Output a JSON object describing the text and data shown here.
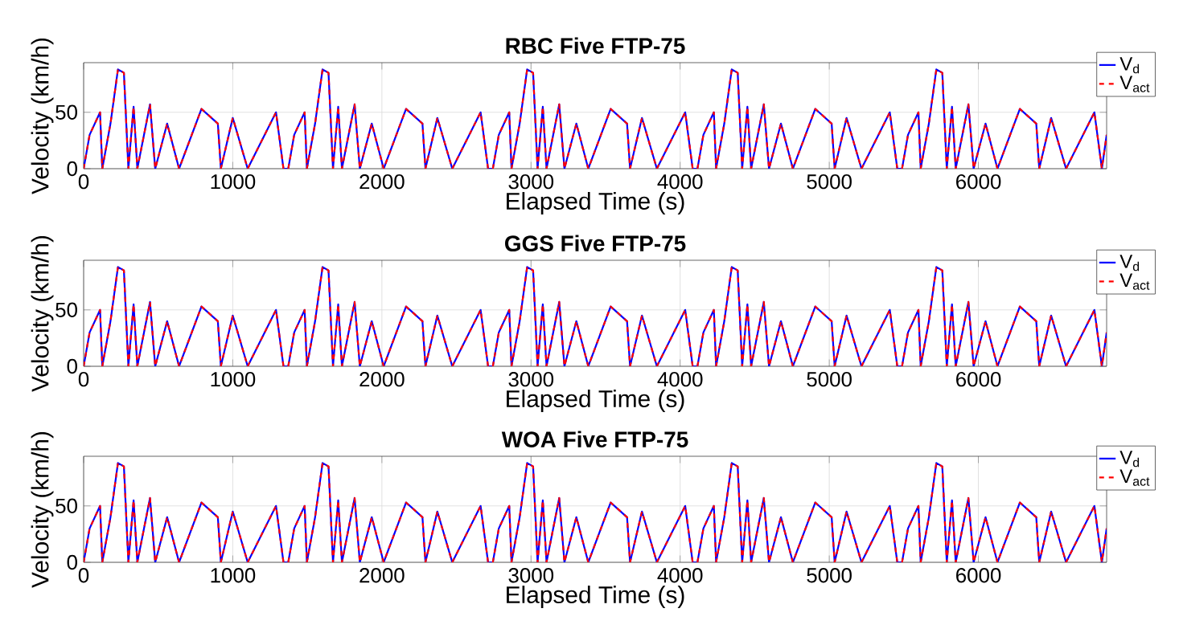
{
  "chart_data": [
    {
      "type": "line",
      "title": "RBC Five FTP-75",
      "xlabel": "Elapsed Time (s)",
      "ylabel": "Velocity (km/h)",
      "x": [
        0,
        40,
        110,
        125,
        180,
        230,
        270,
        300,
        335,
        360,
        445,
        480,
        560,
        640,
        790,
        900,
        920,
        1000,
        1100,
        1290,
        1340,
        1372,
        1412,
        1482,
        1497,
        1552,
        1602,
        1642,
        1672,
        1707,
        1732,
        1817,
        1852,
        1932,
        2012,
        2162,
        2272,
        2292,
        2372,
        2472,
        2662,
        2712,
        2744,
        2784,
        2854,
        2869,
        2924,
        2974,
        3014,
        3044,
        3079,
        3104,
        3189,
        3224,
        3304,
        3384,
        3534,
        3644,
        3664,
        3744,
        3844,
        4034,
        4084,
        4116,
        4156,
        4226,
        4241,
        4296,
        4346,
        4386,
        4416,
        4451,
        4476,
        4561,
        4596,
        4676,
        4756,
        4906,
        5016,
        5036,
        5116,
        5216,
        5406,
        5456,
        5488,
        5528,
        5598,
        5613,
        5668,
        5718,
        5758,
        5788,
        5823,
        5848,
        5933,
        5968,
        6048,
        6128,
        6278,
        6388,
        6408,
        6488,
        6588,
        6778,
        6828,
        6860
      ],
      "series": [
        {
          "name": "V$_{d}$",
          "color": "#0000ff",
          "line_style": "solid",
          "values": [
            0,
            30,
            50,
            0,
            40,
            88,
            85,
            0,
            55,
            0,
            57,
            0,
            40,
            0,
            53,
            40,
            0,
            45,
            0,
            50,
            0,
            0,
            30,
            50,
            0,
            40,
            88,
            85,
            0,
            55,
            0,
            57,
            0,
            40,
            0,
            53,
            40,
            0,
            45,
            0,
            50,
            0,
            0,
            30,
            50,
            0,
            40,
            88,
            85,
            0,
            55,
            0,
            57,
            0,
            40,
            0,
            53,
            40,
            0,
            45,
            0,
            50,
            0,
            0,
            30,
            50,
            0,
            40,
            88,
            85,
            0,
            55,
            0,
            57,
            0,
            40,
            0,
            53,
            40,
            0,
            45,
            0,
            50,
            0,
            0,
            30,
            50,
            0,
            40,
            88,
            85,
            0,
            55,
            0,
            57,
            0,
            40,
            0,
            53,
            40,
            0,
            45,
            0,
            50,
            0,
            30
          ]
        },
        {
          "name": "V$_{act}$",
          "color": "#ff0000",
          "line_style": "dashed",
          "values": [
            0,
            30,
            50,
            0,
            40,
            88,
            85,
            0,
            55,
            0,
            57,
            0,
            40,
            0,
            53,
            40,
            0,
            45,
            0,
            50,
            0,
            0,
            30,
            50,
            0,
            40,
            88,
            85,
            0,
            55,
            0,
            57,
            0,
            40,
            0,
            53,
            40,
            0,
            45,
            0,
            50,
            0,
            0,
            30,
            50,
            0,
            40,
            88,
            85,
            0,
            55,
            0,
            57,
            0,
            40,
            0,
            53,
            40,
            0,
            45,
            0,
            50,
            0,
            0,
            30,
            50,
            0,
            40,
            88,
            85,
            0,
            55,
            0,
            57,
            0,
            40,
            0,
            53,
            40,
            0,
            45,
            0,
            50,
            0,
            0,
            30,
            50,
            0,
            40,
            88,
            85,
            0,
            55,
            0,
            57,
            0,
            40,
            0,
            53,
            40,
            0,
            45,
            0,
            50,
            0,
            30
          ]
        }
      ],
      "xlim": [
        0,
        6860
      ],
      "ylim": [
        0,
        94
      ],
      "xticks": [
        0,
        1000,
        2000,
        3000,
        4000,
        5000,
        6000
      ],
      "yticks": [
        0,
        50
      ],
      "grid": true,
      "legend": "top right"
    },
    {
      "type": "line",
      "title": "GGS Five FTP-75",
      "xlabel": "Elapsed Time (s)",
      "ylabel": "Velocity (km/h)",
      "x": [
        0,
        40,
        110,
        125,
        180,
        230,
        270,
        300,
        335,
        360,
        445,
        480,
        560,
        640,
        790,
        900,
        920,
        1000,
        1100,
        1290,
        1340,
        1372,
        1412,
        1482,
        1497,
        1552,
        1602,
        1642,
        1672,
        1707,
        1732,
        1817,
        1852,
        1932,
        2012,
        2162,
        2272,
        2292,
        2372,
        2472,
        2662,
        2712,
        2744,
        2784,
        2854,
        2869,
        2924,
        2974,
        3014,
        3044,
        3079,
        3104,
        3189,
        3224,
        3304,
        3384,
        3534,
        3644,
        3664,
        3744,
        3844,
        4034,
        4084,
        4116,
        4156,
        4226,
        4241,
        4296,
        4346,
        4386,
        4416,
        4451,
        4476,
        4561,
        4596,
        4676,
        4756,
        4906,
        5016,
        5036,
        5116,
        5216,
        5406,
        5456,
        5488,
        5528,
        5598,
        5613,
        5668,
        5718,
        5758,
        5788,
        5823,
        5848,
        5933,
        5968,
        6048,
        6128,
        6278,
        6388,
        6408,
        6488,
        6588,
        6778,
        6828,
        6860
      ],
      "series": [
        {
          "name": "V$_{d}$",
          "color": "#0000ff",
          "line_style": "solid",
          "values": [
            0,
            30,
            50,
            0,
            40,
            88,
            85,
            0,
            55,
            0,
            57,
            0,
            40,
            0,
            53,
            40,
            0,
            45,
            0,
            50,
            0,
            0,
            30,
            50,
            0,
            40,
            88,
            85,
            0,
            55,
            0,
            57,
            0,
            40,
            0,
            53,
            40,
            0,
            45,
            0,
            50,
            0,
            0,
            30,
            50,
            0,
            40,
            88,
            85,
            0,
            55,
            0,
            57,
            0,
            40,
            0,
            53,
            40,
            0,
            45,
            0,
            50,
            0,
            0,
            30,
            50,
            0,
            40,
            88,
            85,
            0,
            55,
            0,
            57,
            0,
            40,
            0,
            53,
            40,
            0,
            45,
            0,
            50,
            0,
            0,
            30,
            50,
            0,
            40,
            88,
            85,
            0,
            55,
            0,
            57,
            0,
            40,
            0,
            53,
            40,
            0,
            45,
            0,
            50,
            0,
            30
          ]
        },
        {
          "name": "V$_{act}$",
          "color": "#ff0000",
          "line_style": "dashed",
          "values": [
            0,
            30,
            50,
            0,
            40,
            88,
            85,
            0,
            55,
            0,
            57,
            0,
            40,
            0,
            53,
            40,
            0,
            45,
            0,
            50,
            0,
            0,
            30,
            50,
            0,
            40,
            88,
            85,
            0,
            55,
            0,
            57,
            0,
            40,
            0,
            53,
            40,
            0,
            45,
            0,
            50,
            0,
            0,
            30,
            50,
            0,
            40,
            88,
            85,
            0,
            55,
            0,
            57,
            0,
            40,
            0,
            53,
            40,
            0,
            45,
            0,
            50,
            0,
            0,
            30,
            50,
            0,
            40,
            88,
            85,
            0,
            55,
            0,
            57,
            0,
            40,
            0,
            53,
            40,
            0,
            45,
            0,
            50,
            0,
            0,
            30,
            50,
            0,
            40,
            88,
            85,
            0,
            55,
            0,
            57,
            0,
            40,
            0,
            53,
            40,
            0,
            45,
            0,
            50,
            0,
            30
          ]
        }
      ],
      "xlim": [
        0,
        6860
      ],
      "ylim": [
        0,
        94
      ],
      "xticks": [
        0,
        1000,
        2000,
        3000,
        4000,
        5000,
        6000
      ],
      "yticks": [
        0,
        50
      ],
      "grid": true,
      "legend": "top right"
    },
    {
      "type": "line",
      "title": "WOA Five FTP-75",
      "xlabel": "Elapsed Time (s)",
      "ylabel": "Velocity (km/h)",
      "x": [
        0,
        40,
        110,
        125,
        180,
        230,
        270,
        300,
        335,
        360,
        445,
        480,
        560,
        640,
        790,
        900,
        920,
        1000,
        1100,
        1290,
        1340,
        1372,
        1412,
        1482,
        1497,
        1552,
        1602,
        1642,
        1672,
        1707,
        1732,
        1817,
        1852,
        1932,
        2012,
        2162,
        2272,
        2292,
        2372,
        2472,
        2662,
        2712,
        2744,
        2784,
        2854,
        2869,
        2924,
        2974,
        3014,
        3044,
        3079,
        3104,
        3189,
        3224,
        3304,
        3384,
        3534,
        3644,
        3664,
        3744,
        3844,
        4034,
        4084,
        4116,
        4156,
        4226,
        4241,
        4296,
        4346,
        4386,
        4416,
        4451,
        4476,
        4561,
        4596,
        4676,
        4756,
        4906,
        5016,
        5036,
        5116,
        5216,
        5406,
        5456,
        5488,
        5528,
        5598,
        5613,
        5668,
        5718,
        5758,
        5788,
        5823,
        5848,
        5933,
        5968,
        6048,
        6128,
        6278,
        6388,
        6408,
        6488,
        6588,
        6778,
        6828,
        6860
      ],
      "series": [
        {
          "name": "V$_{d}$",
          "color": "#0000ff",
          "line_style": "solid",
          "values": [
            0,
            30,
            50,
            0,
            40,
            88,
            85,
            0,
            55,
            0,
            57,
            0,
            40,
            0,
            53,
            40,
            0,
            45,
            0,
            50,
            0,
            0,
            30,
            50,
            0,
            40,
            88,
            85,
            0,
            55,
            0,
            57,
            0,
            40,
            0,
            53,
            40,
            0,
            45,
            0,
            50,
            0,
            0,
            30,
            50,
            0,
            40,
            88,
            85,
            0,
            55,
            0,
            57,
            0,
            40,
            0,
            53,
            40,
            0,
            45,
            0,
            50,
            0,
            0,
            30,
            50,
            0,
            40,
            88,
            85,
            0,
            55,
            0,
            57,
            0,
            40,
            0,
            53,
            40,
            0,
            45,
            0,
            50,
            0,
            0,
            30,
            50,
            0,
            40,
            88,
            85,
            0,
            55,
            0,
            57,
            0,
            40,
            0,
            53,
            40,
            0,
            45,
            0,
            50,
            0,
            30
          ]
        },
        {
          "name": "V$_{act}$",
          "color": "#ff0000",
          "line_style": "dashed",
          "values": [
            0,
            30,
            50,
            0,
            40,
            88,
            85,
            0,
            55,
            0,
            57,
            0,
            40,
            0,
            53,
            40,
            0,
            45,
            0,
            50,
            0,
            0,
            30,
            50,
            0,
            40,
            88,
            85,
            0,
            55,
            0,
            57,
            0,
            40,
            0,
            53,
            40,
            0,
            45,
            0,
            50,
            0,
            0,
            30,
            50,
            0,
            40,
            88,
            85,
            0,
            55,
            0,
            57,
            0,
            40,
            0,
            53,
            40,
            0,
            45,
            0,
            50,
            0,
            0,
            30,
            50,
            0,
            40,
            88,
            85,
            0,
            55,
            0,
            57,
            0,
            40,
            0,
            53,
            40,
            0,
            45,
            0,
            50,
            0,
            0,
            30,
            50,
            0,
            40,
            88,
            85,
            0,
            55,
            0,
            57,
            0,
            40,
            0,
            53,
            40,
            0,
            45,
            0,
            50,
            0,
            30
          ]
        }
      ],
      "xlim": [
        0,
        6860
      ],
      "ylim": [
        0,
        94
      ],
      "xticks": [
        0,
        1000,
        2000,
        3000,
        4000,
        5000,
        6000
      ],
      "yticks": [
        0,
        50
      ],
      "grid": true,
      "legend": "top right"
    }
  ]
}
